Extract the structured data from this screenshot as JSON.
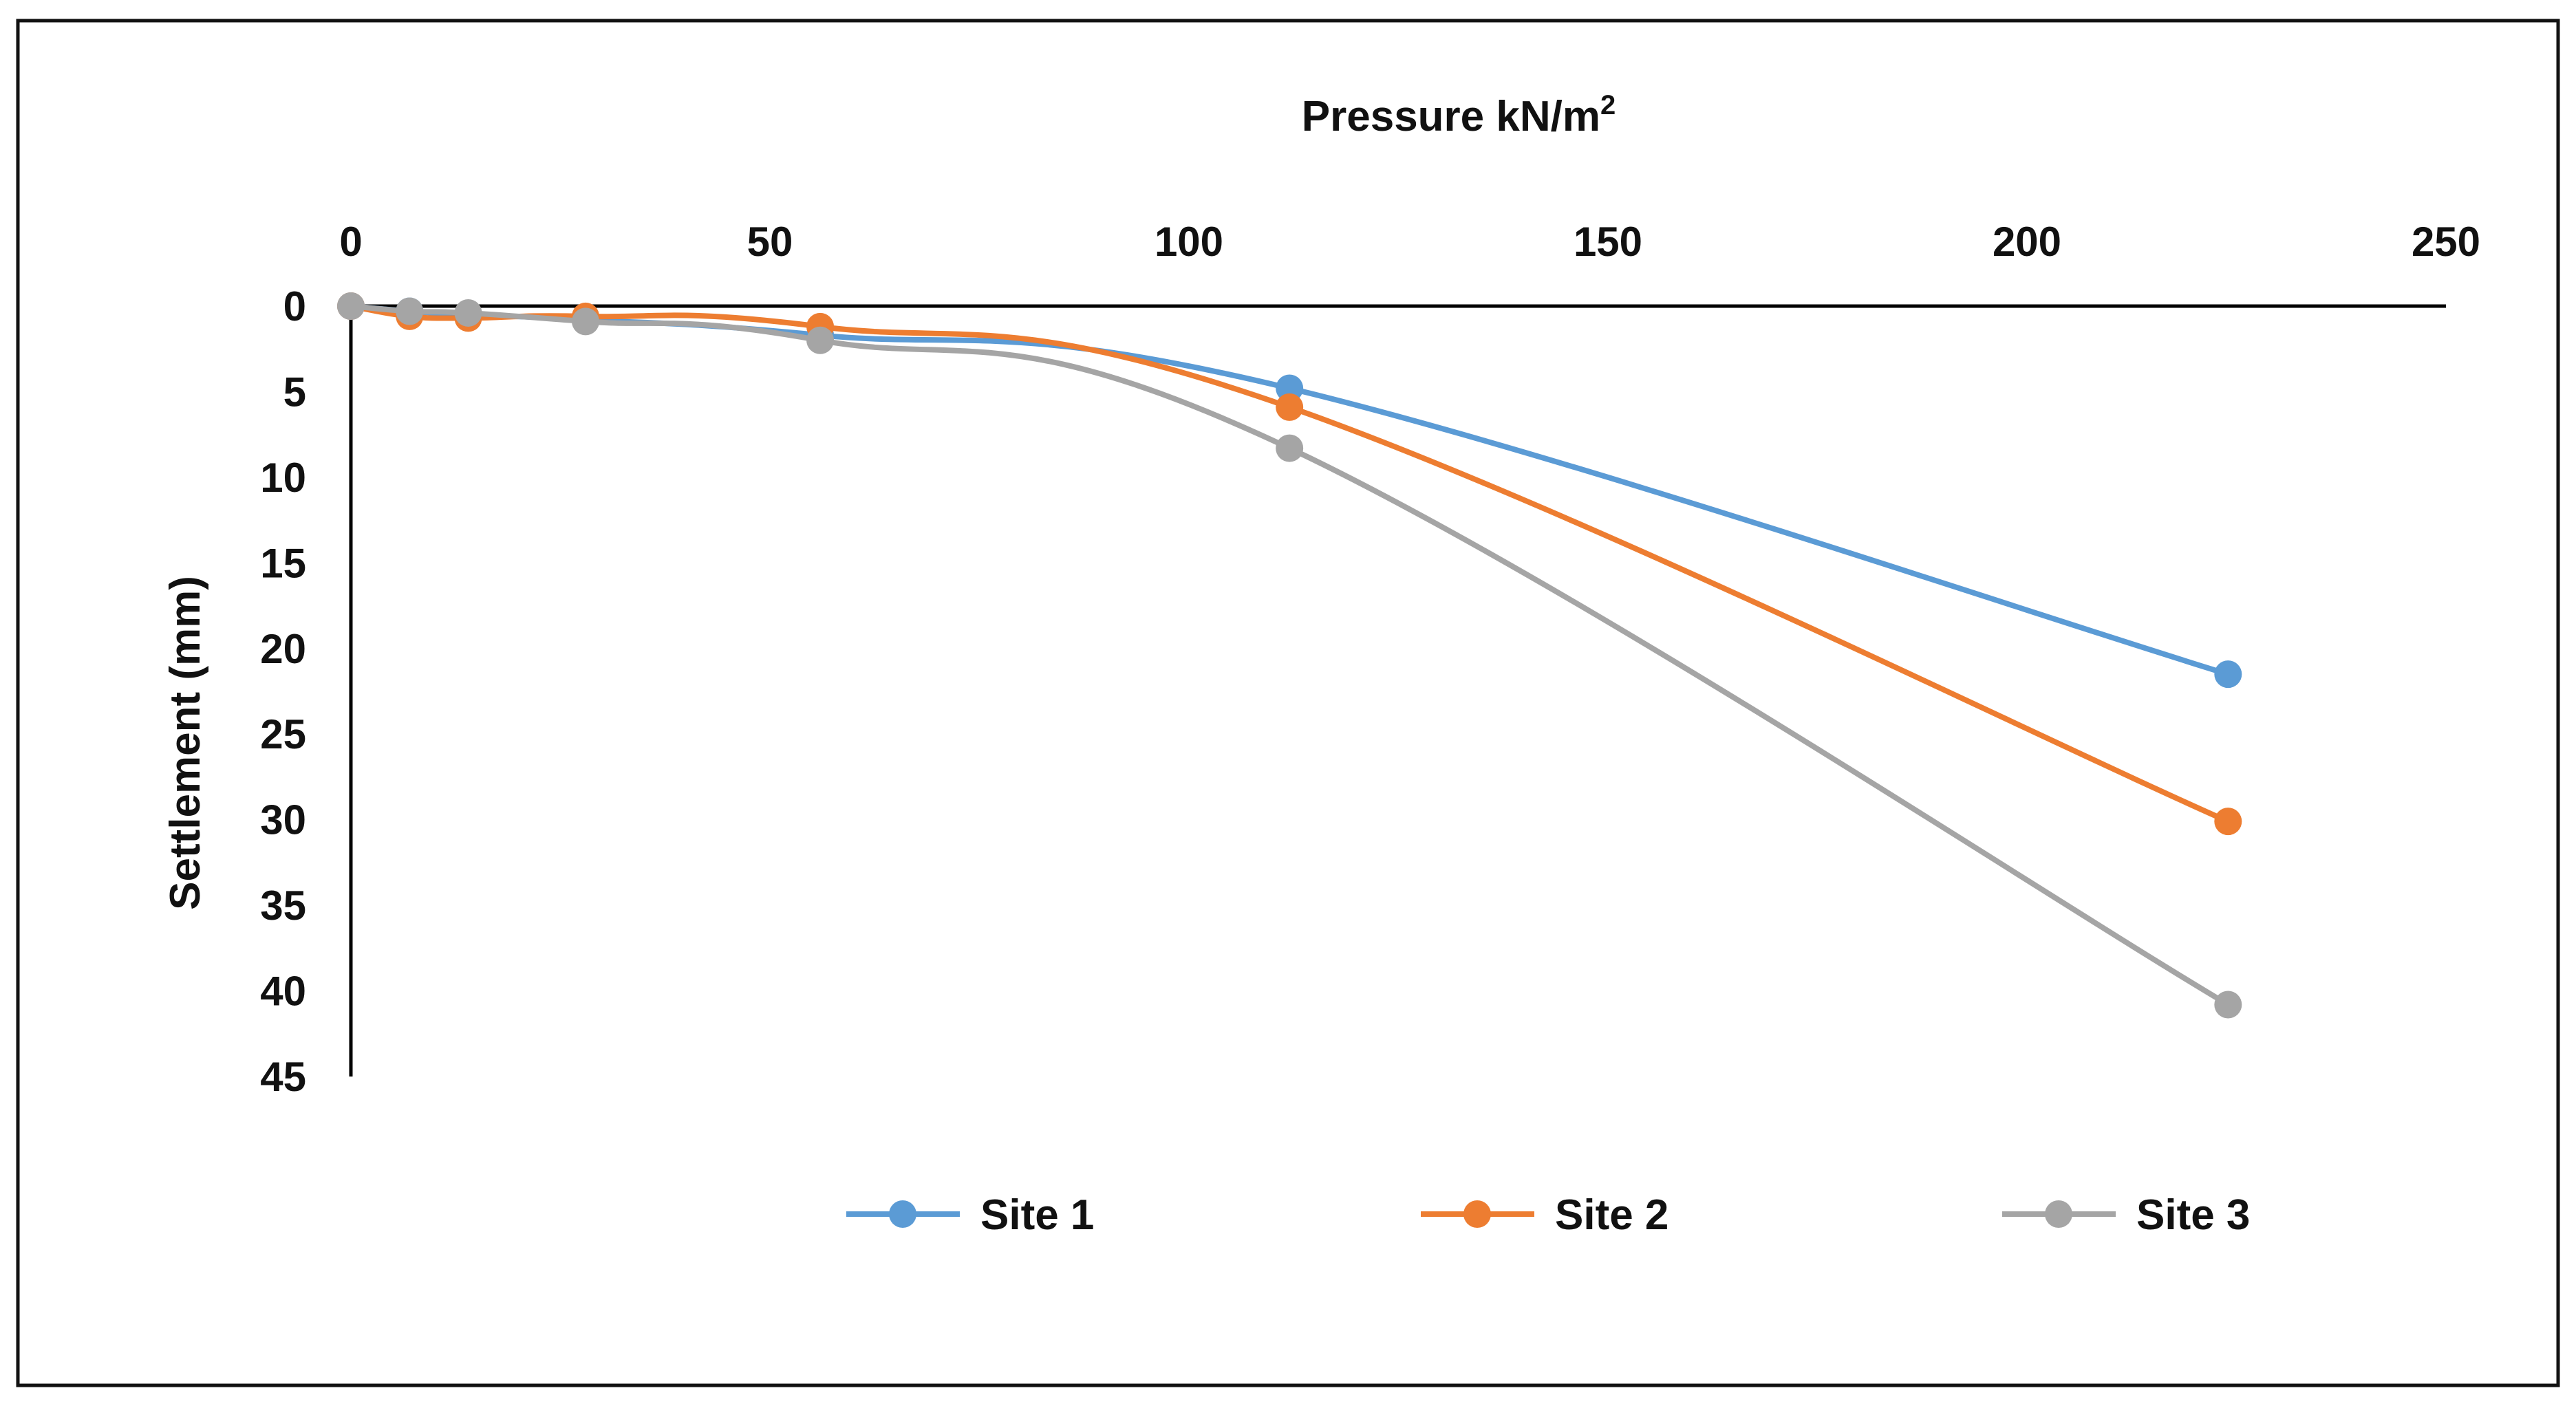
{
  "chart_data": {
    "type": "line",
    "title": "",
    "xlabel": "Pressure kN/m",
    "xlabel_superscript": "2",
    "ylabel": "Settlement (mm)",
    "xlim": [
      0,
      250
    ],
    "ylim": [
      0,
      45
    ],
    "y_inverted": true,
    "x_axis_position": "top",
    "grid": false,
    "legend_position": "bottom",
    "x_ticks": [
      0,
      50,
      100,
      150,
      200,
      250
    ],
    "y_ticks": [
      0,
      5,
      10,
      15,
      20,
      25,
      30,
      35,
      40,
      45
    ],
    "series": [
      {
        "name": "Site 1",
        "color": "#5B9BD5",
        "x": [
          0,
          7,
          14,
          28,
          56,
          112,
          224
        ],
        "y": [
          0,
          0.3,
          0.5,
          0.8,
          1.7,
          4.8,
          21.5
        ]
      },
      {
        "name": "Site 2",
        "color": "#ED7D31",
        "x": [
          0,
          7,
          14,
          28,
          56,
          112,
          224
        ],
        "y": [
          0,
          0.6,
          0.7,
          0.6,
          1.2,
          5.9,
          30.1
        ]
      },
      {
        "name": "Site 3",
        "color": "#A5A5A5",
        "x": [
          0,
          7,
          14,
          28,
          56,
          112,
          224
        ],
        "y": [
          0,
          0.3,
          0.4,
          0.9,
          2.0,
          8.3,
          40.8
        ]
      }
    ]
  }
}
